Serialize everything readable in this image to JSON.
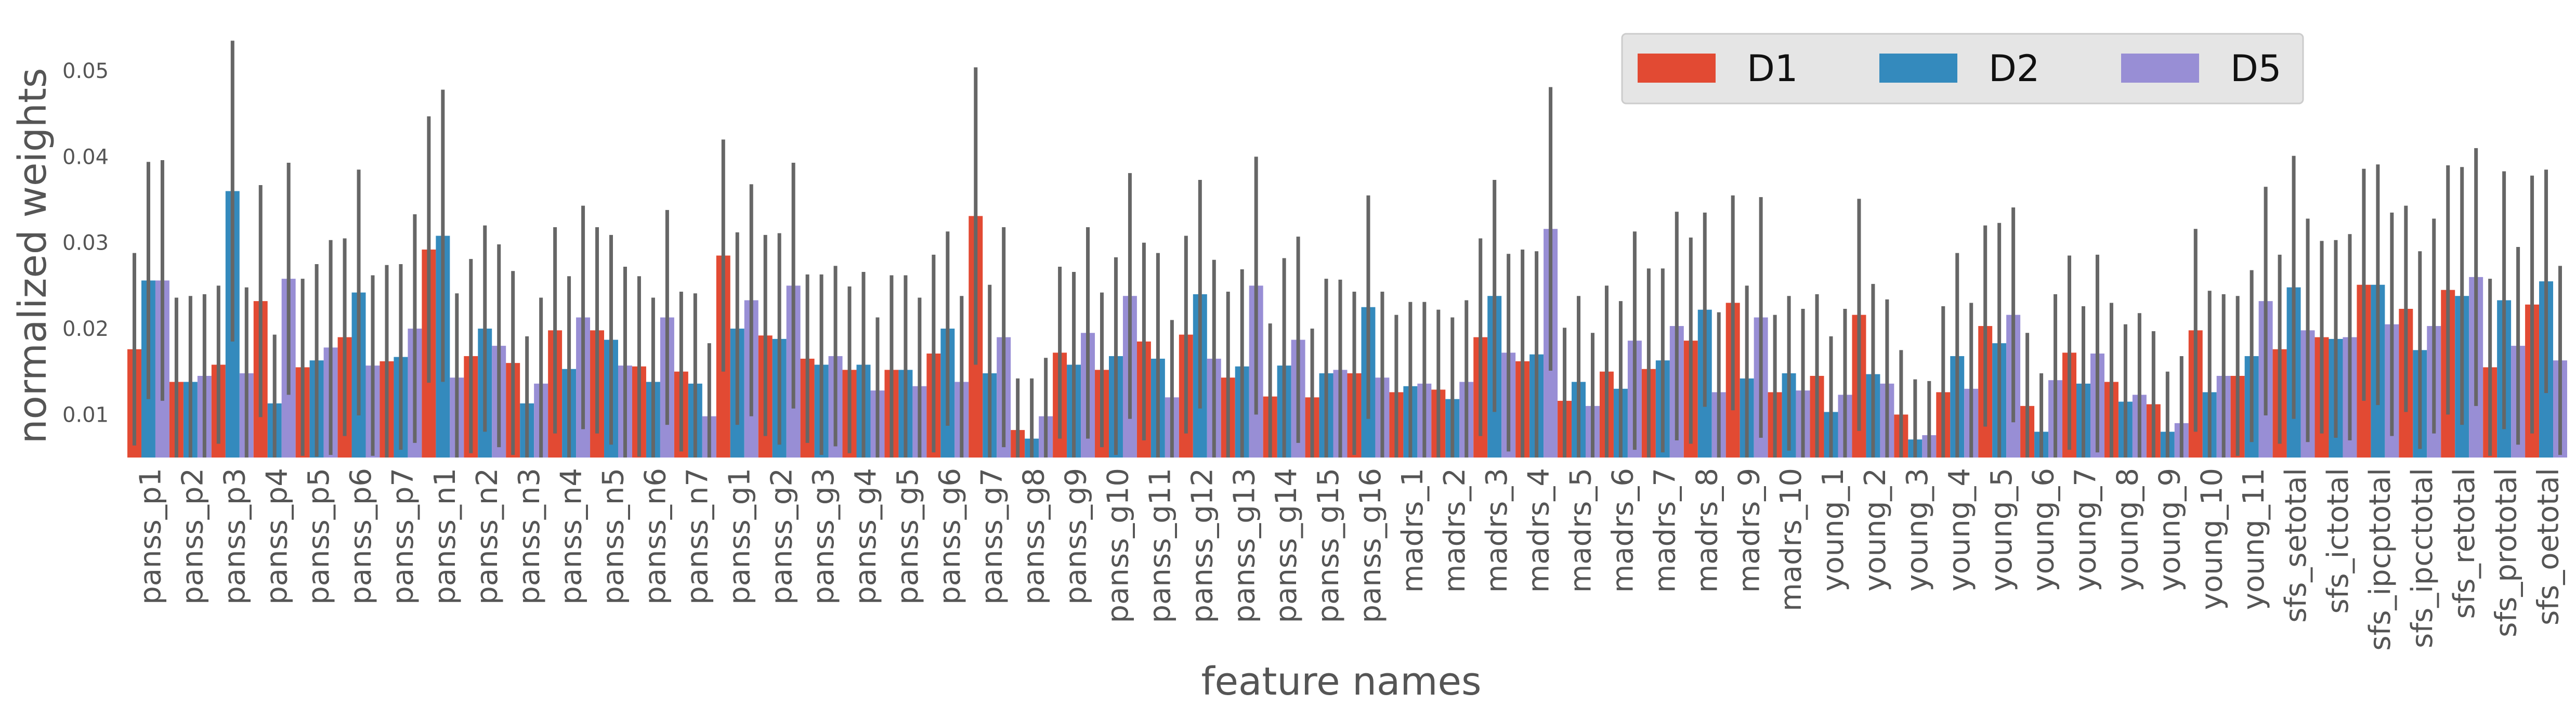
{
  "chart_data": {
    "type": "bar",
    "title": "",
    "xlabel": "feature names",
    "ylabel": "normalized weights",
    "ylim": [
      0.005,
      0.054
    ],
    "yticks": [
      0.01,
      0.02,
      0.03,
      0.04,
      0.05
    ],
    "ytick_labels": [
      "0.01",
      "0.02",
      "0.03",
      "0.04",
      "0.05"
    ],
    "grid": false,
    "legend_position": "top-right",
    "categories": [
      "panss_p1",
      "panss_p2",
      "panss_p3",
      "panss_p4",
      "panss_p5",
      "panss_p6",
      "panss_p7",
      "panss_n1",
      "panss_n2",
      "panss_n3",
      "panss_n4",
      "panss_n5",
      "panss_n6",
      "panss_n7",
      "panss_g1",
      "panss_g2",
      "panss_g3",
      "panss_g4",
      "panss_g5",
      "panss_g6",
      "panss_g7",
      "panss_g8",
      "panss_g9",
      "panss_g10",
      "panss_g11",
      "panss_g12",
      "panss_g13",
      "panss_g14",
      "panss_g15",
      "panss_g16",
      "madrs_1",
      "madrs_2",
      "madrs_3",
      "madrs_4",
      "madrs_5",
      "madrs_6",
      "madrs_7",
      "madrs_8",
      "madrs_9",
      "madrs_10",
      "young_1",
      "young_2",
      "young_3",
      "young_4",
      "young_5",
      "young_6",
      "young_7",
      "young_8",
      "young_9",
      "young_10",
      "young_11",
      "sfs_setotal",
      "sfs_ictotal",
      "sfs_ipcptotal",
      "sfs_ipcctotal",
      "sfs_retotal",
      "sfs_prototal",
      "sfs_oetotal"
    ],
    "series": [
      {
        "name": "D1",
        "color": "#E24A33",
        "values": [
          0.0176,
          0.0138,
          0.0158,
          0.0232,
          0.0155,
          0.019,
          0.0162,
          0.0292,
          0.0168,
          0.016,
          0.0198,
          0.0198,
          0.0156,
          0.015,
          0.0285,
          0.0192,
          0.0165,
          0.0152,
          0.0152,
          0.0171,
          0.0331,
          0.0082,
          0.0172,
          0.0152,
          0.0185,
          0.0193,
          0.0143,
          0.0121,
          0.012,
          0.0148,
          0.0126,
          0.0129,
          0.019,
          0.0162,
          0.0116,
          0.015,
          0.0153,
          0.0186,
          0.023,
          0.0126,
          0.0145,
          0.0216,
          0.01,
          0.0126,
          0.0203,
          0.011,
          0.0172,
          0.0138,
          0.0112,
          0.0198,
          0.0145,
          0.0176,
          0.019,
          0.0251,
          0.0223,
          0.0245,
          0.0155,
          0.0228
        ],
        "errors": [
          0.0112,
          0.0098,
          0.0092,
          0.0135,
          0.0103,
          0.0115,
          0.0112,
          0.0155,
          0.0113,
          0.0107,
          0.012,
          0.012,
          0.0105,
          0.0093,
          0.0135,
          0.0117,
          0.0098,
          0.0097,
          0.011,
          0.0115,
          0.0173,
          0.006,
          0.01,
          0.009,
          0.0115,
          0.0115,
          0.01,
          0.0085,
          0.008,
          0.0095,
          0.009,
          0.0093,
          0.0115,
          0.013,
          0.0085,
          0.01,
          0.0117,
          0.012,
          0.0125,
          0.009,
          0.0095,
          0.0135,
          0.0075,
          0.01,
          0.0117,
          0.0085,
          0.0113,
          0.0092,
          0.0085,
          0.0118,
          0.0093,
          0.011,
          0.0112,
          0.0135,
          0.012,
          0.0145,
          0.0103,
          0.015
        ]
      },
      {
        "name": "D2",
        "color": "#348ABD",
        "values": [
          0.0256,
          0.0138,
          0.036,
          0.0113,
          0.0163,
          0.0242,
          0.0167,
          0.0308,
          0.02,
          0.0113,
          0.0153,
          0.0187,
          0.0138,
          0.0136,
          0.02,
          0.0188,
          0.0158,
          0.0158,
          0.0152,
          0.02,
          0.0148,
          0.0072,
          0.0158,
          0.0168,
          0.0165,
          0.024,
          0.0156,
          0.0157,
          0.0148,
          0.0225,
          0.0133,
          0.0118,
          0.0238,
          0.017,
          0.0138,
          0.013,
          0.0163,
          0.0222,
          0.0142,
          0.0148,
          0.0103,
          0.0147,
          0.0071,
          0.0168,
          0.0183,
          0.008,
          0.0136,
          0.0115,
          0.008,
          0.0126,
          0.0168,
          0.0248,
          0.0188,
          0.0251,
          0.0175,
          0.0238,
          0.0233,
          0.0255
        ],
        "errors": [
          0.0138,
          0.01,
          0.0175,
          0.008,
          0.0112,
          0.0143,
          0.0108,
          0.017,
          0.012,
          0.0078,
          0.0108,
          0.0122,
          0.0098,
          0.0105,
          0.0112,
          0.0123,
          0.0105,
          0.0108,
          0.011,
          0.0113,
          0.0103,
          0.007,
          0.0108,
          0.0115,
          0.0123,
          0.0133,
          0.0113,
          0.0125,
          0.011,
          0.013,
          0.0098,
          0.0095,
          0.0135,
          0.012,
          0.01,
          0.0102,
          0.0107,
          0.0113,
          0.0108,
          0.009,
          0.0088,
          0.0105,
          0.007,
          0.012,
          0.014,
          0.0068,
          0.009,
          0.009,
          0.007,
          0.0118,
          0.01,
          0.0153,
          0.0115,
          0.014,
          0.0115,
          0.015,
          0.015,
          0.013
        ]
      },
      {
        "name": "D5",
        "color": "#988ED5",
        "values": [
          0.0256,
          0.0145,
          0.0148,
          0.0258,
          0.0178,
          0.0157,
          0.02,
          0.0143,
          0.018,
          0.0136,
          0.0213,
          0.0157,
          0.0213,
          0.0098,
          0.0233,
          0.025,
          0.0168,
          0.0128,
          0.0133,
          0.0138,
          0.019,
          0.0098,
          0.0195,
          0.0238,
          0.012,
          0.0165,
          0.025,
          0.0187,
          0.0152,
          0.0143,
          0.0136,
          0.0138,
          0.0172,
          0.0316,
          0.011,
          0.0186,
          0.0203,
          0.0126,
          0.0213,
          0.0128,
          0.0123,
          0.0136,
          0.0076,
          0.013,
          0.0216,
          0.014,
          0.0171,
          0.0123,
          0.009,
          0.0145,
          0.0232,
          0.0198,
          0.019,
          0.0205,
          0.0203,
          0.026,
          0.018,
          0.0163
        ],
        "errors": [
          0.014,
          0.0095,
          0.01,
          0.0135,
          0.0125,
          0.0105,
          0.0133,
          0.0098,
          0.0118,
          0.01,
          0.013,
          0.0115,
          0.0125,
          0.0085,
          0.0135,
          0.0143,
          0.0105,
          0.0085,
          0.0103,
          0.01,
          0.0128,
          0.0068,
          0.0123,
          0.0143,
          0.009,
          0.0115,
          0.015,
          0.012,
          0.0105,
          0.01,
          0.0095,
          0.0095,
          0.0115,
          0.0165,
          0.0085,
          0.0127,
          0.0133,
          0.0093,
          0.014,
          0.0095,
          0.01,
          0.0098,
          0.0063,
          0.01,
          0.0125,
          0.01,
          0.0115,
          0.0095,
          0.0078,
          0.0095,
          0.0133,
          0.013,
          0.012,
          0.013,
          0.0125,
          0.015,
          0.0115,
          0.011
        ]
      }
    ]
  }
}
